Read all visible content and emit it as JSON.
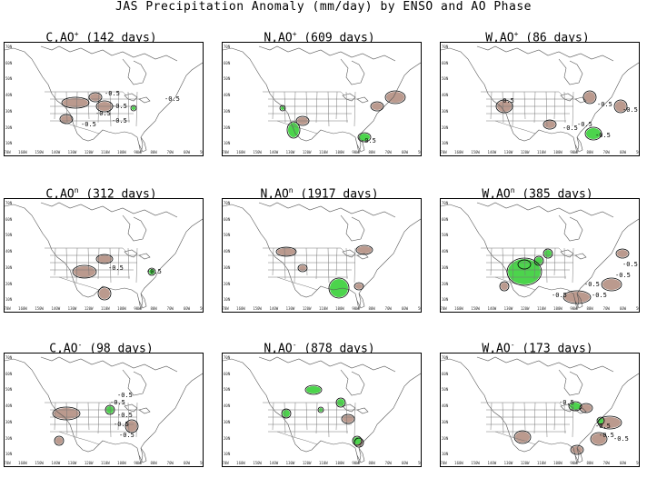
{
  "title": "JAS Precipitation Anomaly (mm/day) by ENSO and AO Phase",
  "colors": {
    "positive_anomaly": "#4cd44c",
    "negative_anomaly": "#bb9a8e",
    "contour": "#000000",
    "boundaries": "#777777"
  },
  "contour_level_label": "-0.5",
  "panels": [
    {
      "enso": "C",
      "ao": "+",
      "days": "142",
      "title_pre": "C,AO",
      "title_post": " (142 days)"
    },
    {
      "enso": "N",
      "ao": "+",
      "days": "609",
      "title_pre": "N,AO",
      "title_post": " (609 days)"
    },
    {
      "enso": "W",
      "ao": "+",
      "days": "86",
      "title_pre": "W,AO",
      "title_post": " (86 days)"
    },
    {
      "enso": "C",
      "ao": "n",
      "days": "312",
      "title_pre": "C,AO",
      "title_post": " (312 days)"
    },
    {
      "enso": "N",
      "ao": "n",
      "days": "1917",
      "title_pre": "N,AO",
      "title_post": " (1917 days)"
    },
    {
      "enso": "W",
      "ao": "n",
      "days": "385",
      "title_pre": "W,AO",
      "title_post": " (385 days)"
    },
    {
      "enso": "C",
      "ao": "-",
      "days": "98",
      "title_pre": "C,AO",
      "title_post": " (98 days)"
    },
    {
      "enso": "N",
      "ao": "-",
      "days": "878",
      "title_pre": "N,AO",
      "title_post": " (878 days)"
    },
    {
      "enso": "W",
      "ao": "-",
      "days": "173",
      "title_pre": "W,AO",
      "title_post": " (173 days)"
    }
  ]
}
